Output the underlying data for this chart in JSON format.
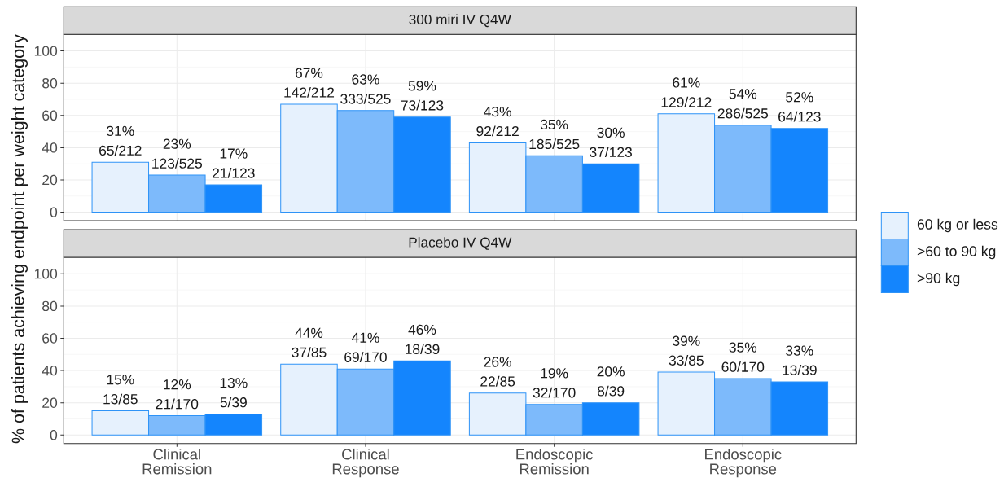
{
  "chart_data": [
    {
      "type": "bar",
      "title": "300 miri IV Q4W",
      "ylabel": "% of patients achieving endpoint per weight category",
      "categories": [
        null,
        null,
        null,
        null
      ],
      "series": [
        {
          "name": "60 kg or less",
          "color": "#e6f1fd",
          "values": [
            31,
            67,
            43,
            61
          ],
          "value_labels": [
            "31% 65/212",
            "67% 142/212",
            "43% 92/212",
            "61% 129/212"
          ]
        },
        {
          "name": ">60 to 90 kg",
          "color": "#7dbafb",
          "values": [
            23,
            63,
            35,
            54
          ],
          "value_labels": [
            "23% 123/525",
            "63% 333/525",
            "35% 185/525",
            "54% 286/525"
          ]
        },
        {
          "name": ">90 kg",
          "color": "#1485fd",
          "values": [
            17,
            59,
            30,
            52
          ],
          "value_labels": [
            "17% 21/123",
            "59% 73/123",
            "30% 37/123",
            "52% 64/123"
          ]
        }
      ],
      "ylim": [
        -5.25,
        110.25
      ],
      "yticks": [
        0,
        20,
        40,
        60,
        80,
        100
      ],
      "grid": true,
      "legend": "right",
      "tick_labels": "y"
    },
    {
      "type": "bar",
      "title": "Placebo IV Q4W",
      "categories": [
        "Clinical Remission",
        "Clinical Response",
        "Endoscopic Remission",
        "Endoscopic Response"
      ],
      "series": [
        {
          "color": "#e6f1fd",
          "values": [
            15,
            44,
            26,
            39
          ],
          "value_labels": [
            "15% 13/85",
            "44% 37/85",
            "26% 22/85",
            "39% 33/85"
          ]
        },
        {
          "color": "#7dbafb",
          "values": [
            12,
            41,
            19,
            35
          ],
          "value_labels": [
            "12% 21/170",
            "41% 69/170",
            "19% 32/170",
            "35% 60/170"
          ]
        },
        {
          "color": "#1485fd",
          "values": [
            13,
            46,
            20,
            33
          ],
          "value_labels": [
            "13% 5/39",
            "46% 18/39",
            "20% 8/39",
            "33% 13/39"
          ]
        }
      ],
      "ylim": [
        -5.25,
        110.25
      ],
      "yticks": [
        0,
        20,
        40,
        60,
        80,
        100
      ],
      "grid": true
    }
  ]
}
